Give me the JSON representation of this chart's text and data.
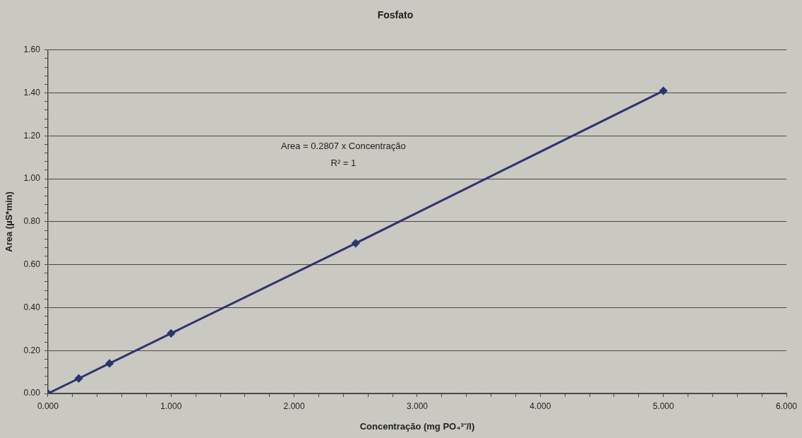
{
  "chart_data": {
    "type": "line",
    "title": "Fosfato",
    "xlabel": "Concentração (mg PO₄³⁻/l)",
    "ylabel": "Area (µS*min)",
    "annotations": [
      "Area = 0.2807 x Concentração",
      "R² = 1"
    ],
    "x": [
      0,
      0.25,
      0.5,
      1,
      2.5,
      5
    ],
    "series": [
      {
        "color": "#2b3570",
        "values": [
          0,
          0.07,
          0.14,
          0.28,
          0.7,
          1.41
        ]
      }
    ],
    "xlim": [
      0,
      6
    ],
    "xticks": [
      {
        "value": 0,
        "label": "0.000"
      },
      {
        "value": 0.2,
        "label": null
      },
      {
        "value": 0.4,
        "label": null
      },
      {
        "value": 0.6,
        "label": null
      },
      {
        "value": 0.8,
        "label": null
      },
      {
        "value": 1,
        "label": "1.000"
      },
      {
        "value": 1.2,
        "label": null
      },
      {
        "value": 1.4,
        "label": null
      },
      {
        "value": 1.6,
        "label": null
      },
      {
        "value": 1.8,
        "label": null
      },
      {
        "value": 2,
        "label": "2.000"
      },
      {
        "value": 2.2,
        "label": null
      },
      {
        "value": 2.4,
        "label": null
      },
      {
        "value": 2.6,
        "label": null
      },
      {
        "value": 2.8,
        "label": null
      },
      {
        "value": 3,
        "label": "3.000"
      },
      {
        "value": 3.2,
        "label": null
      },
      {
        "value": 3.4,
        "label": null
      },
      {
        "value": 3.6,
        "label": null
      },
      {
        "value": 3.8,
        "label": null
      },
      {
        "value": 4,
        "label": "4.000"
      },
      {
        "value": 4.2,
        "label": null
      },
      {
        "value": 4.4,
        "label": null
      },
      {
        "value": 4.6,
        "label": null
      },
      {
        "value": 4.8,
        "label": null
      },
      {
        "value": 5,
        "label": "5.000"
      },
      {
        "value": 5.2,
        "label": null
      },
      {
        "value": 5.4,
        "label": null
      },
      {
        "value": 5.6,
        "label": null
      },
      {
        "value": 5.8,
        "label": null
      },
      {
        "value": 6,
        "label": "6.000"
      }
    ],
    "ylim": [
      0,
      1.6
    ],
    "yticks": [
      {
        "value": 0,
        "label": "0.00"
      },
      {
        "value": 0.04,
        "label": null
      },
      {
        "value": 0.08,
        "label": null
      },
      {
        "value": 0.12,
        "label": null
      },
      {
        "value": 0.16,
        "label": null
      },
      {
        "value": 0.2,
        "label": "0.20"
      },
      {
        "value": 0.24,
        "label": null
      },
      {
        "value": 0.28,
        "label": null
      },
      {
        "value": 0.32,
        "label": null
      },
      {
        "value": 0.36,
        "label": null
      },
      {
        "value": 0.4,
        "label": "0.40"
      },
      {
        "value": 0.44,
        "label": null
      },
      {
        "value": 0.48,
        "label": null
      },
      {
        "value": 0.52,
        "label": null
      },
      {
        "value": 0.56,
        "label": null
      },
      {
        "value": 0.6,
        "label": "0.60"
      },
      {
        "value": 0.64,
        "label": null
      },
      {
        "value": 0.68,
        "label": null
      },
      {
        "value": 0.72,
        "label": null
      },
      {
        "value": 0.76,
        "label": null
      },
      {
        "value": 0.8,
        "label": "0.80"
      },
      {
        "value": 0.84,
        "label": null
      },
      {
        "value": 0.88,
        "label": null
      },
      {
        "value": 0.92,
        "label": null
      },
      {
        "value": 0.96,
        "label": null
      },
      {
        "value": 1,
        "label": "1.00"
      },
      {
        "value": 1.04,
        "label": null
      },
      {
        "value": 1.08,
        "label": null
      },
      {
        "value": 1.12,
        "label": null
      },
      {
        "value": 1.16,
        "label": null
      },
      {
        "value": 1.2,
        "label": "1.20"
      },
      {
        "value": 1.24,
        "label": null
      },
      {
        "value": 1.28,
        "label": null
      },
      {
        "value": 1.32,
        "label": null
      },
      {
        "value": 1.36,
        "label": null
      },
      {
        "value": 1.4,
        "label": "1.40"
      },
      {
        "value": 1.44,
        "label": null
      },
      {
        "value": 1.48,
        "label": null
      },
      {
        "value": 1.52,
        "label": null
      },
      {
        "value": 1.56,
        "label": null
      },
      {
        "value": 1.6,
        "label": "1.60"
      }
    ],
    "grid": "y",
    "marker": "diamond",
    "line_style": "solid"
  }
}
